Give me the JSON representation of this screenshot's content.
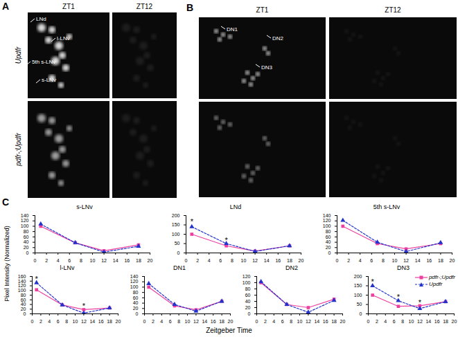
{
  "panels": {
    "A": {
      "label": "A",
      "columns": [
        "ZT1",
        "ZT12"
      ],
      "rows": [
        "Updfr",
        "pdfr-;Updfr"
      ],
      "cell_labels": [
        "LNd",
        "l-LNv",
        "5th s-LNv",
        "s-LNv"
      ]
    },
    "B": {
      "label": "B",
      "columns": [
        "ZT1",
        "ZT12"
      ],
      "cell_labels": [
        "DN1",
        "DN2",
        "DN3"
      ]
    },
    "C": {
      "label": "C",
      "ylabel": "Pixel Intensity (Normalized)",
      "xlabel": "Zeitgeber Time"
    }
  },
  "chart_data": [
    {
      "type": "line",
      "title": "s-LNv",
      "x": [
        1,
        7,
        12,
        18
      ],
      "xlim": [
        0,
        20
      ],
      "xticks": [
        0,
        2,
        4,
        6,
        8,
        10,
        12,
        14,
        16,
        18,
        20
      ],
      "ylim": [
        0,
        140
      ],
      "yticks": [
        0,
        20,
        40,
        60,
        80,
        100,
        120,
        140
      ],
      "series": [
        {
          "name": "pdfr-;Updfr",
          "color": "#ee3fa0",
          "marker": "square",
          "line_style": "solid",
          "values": [
            100,
            38,
            8,
            30
          ]
        },
        {
          "name": "Updfr",
          "color": "#2233cc",
          "marker": "triangle",
          "line_style": "dashed",
          "values": [
            108,
            38,
            3,
            25
          ]
        }
      ]
    },
    {
      "type": "line",
      "title": "LNd",
      "x": [
        1,
        7,
        12,
        18
      ],
      "xlim": [
        0,
        20
      ],
      "xticks": [
        0,
        2,
        4,
        6,
        8,
        10,
        12,
        14,
        16,
        18,
        20
      ],
      "ylim": [
        0,
        200
      ],
      "yticks": [
        0,
        50,
        100,
        150,
        200
      ],
      "series": [
        {
          "name": "pdfr-;Updfr",
          "color": "#ee3fa0",
          "marker": "square",
          "line_style": "solid",
          "values": [
            100,
            38,
            10,
            38
          ]
        },
        {
          "name": "Updfr",
          "color": "#2233cc",
          "marker": "triangle",
          "line_style": "dashed",
          "values": [
            140,
            50,
            8,
            38
          ]
        }
      ],
      "annotations": [
        {
          "x": 1,
          "y": 165,
          "text": "*"
        },
        {
          "x": 7,
          "y": 68,
          "text": "*"
        }
      ]
    },
    {
      "type": "line",
      "title": "5th s-LNv",
      "x": [
        1,
        7,
        12,
        18
      ],
      "xlim": [
        0,
        20
      ],
      "xticks": [
        0,
        2,
        4,
        6,
        8,
        10,
        12,
        14,
        16,
        18,
        20
      ],
      "ylim": [
        0,
        140
      ],
      "yticks": [
        0,
        20,
        40,
        60,
        80,
        100,
        120,
        140
      ],
      "series": [
        {
          "name": "pdfr-;Updfr",
          "color": "#ee3fa0",
          "marker": "square",
          "line_style": "solid",
          "values": [
            100,
            35,
            15,
            35
          ]
        },
        {
          "name": "Updfr",
          "color": "#2233cc",
          "marker": "triangle",
          "line_style": "dashed",
          "values": [
            122,
            40,
            5,
            38
          ]
        }
      ]
    },
    {
      "type": "line",
      "title": "l-LNv",
      "x": [
        1,
        7,
        12,
        18
      ],
      "xlim": [
        0,
        20
      ],
      "xticks": [
        0,
        2,
        4,
        6,
        8,
        10,
        12,
        14,
        16,
        18,
        20
      ],
      "ylim": [
        0,
        160
      ],
      "yticks": [
        0,
        20,
        40,
        60,
        80,
        100,
        120,
        140,
        160
      ],
      "series": [
        {
          "name": "pdfr-;Updfr",
          "color": "#ee3fa0",
          "marker": "square",
          "line_style": "solid",
          "values": [
            103,
            38,
            18,
            25
          ]
        },
        {
          "name": "Updfr",
          "color": "#2233cc",
          "marker": "triangle",
          "line_style": "dashed",
          "values": [
            133,
            38,
            3,
            25
          ]
        }
      ],
      "annotations": [
        {
          "x": 1,
          "y": 148,
          "text": "*"
        },
        {
          "x": 12,
          "y": 32,
          "text": "*"
        }
      ]
    },
    {
      "type": "line",
      "title": "DN1",
      "x": [
        1,
        7,
        12,
        18
      ],
      "xlim": [
        0,
        20
      ],
      "xticks": [
        0,
        2,
        4,
        6,
        8,
        10,
        12,
        14,
        16,
        18,
        20
      ],
      "ylim": [
        0,
        140
      ],
      "yticks": [
        0,
        20,
        40,
        60,
        80,
        100,
        120,
        140
      ],
      "series": [
        {
          "name": "pdfr-;Updfr",
          "color": "#ee3fa0",
          "marker": "square",
          "line_style": "solid",
          "values": [
            100,
            30,
            15,
            47
          ]
        },
        {
          "name": "Updfr",
          "color": "#2233cc",
          "marker": "triangle",
          "line_style": "dashed",
          "values": [
            113,
            35,
            10,
            47
          ]
        }
      ]
    },
    {
      "type": "line",
      "title": "DN2",
      "x": [
        1,
        7,
        12,
        18
      ],
      "xlim": [
        0,
        20
      ],
      "xticks": [
        0,
        2,
        4,
        6,
        8,
        10,
        12,
        14,
        16,
        18,
        20
      ],
      "ylim": [
        0,
        120
      ],
      "yticks": [
        0,
        20,
        40,
        60,
        80,
        100,
        120
      ],
      "series": [
        {
          "name": "pdfr-;Updfr",
          "color": "#ee3fa0",
          "marker": "square",
          "line_style": "solid",
          "values": [
            100,
            30,
            20,
            47
          ]
        },
        {
          "name": "Updfr",
          "color": "#2233cc",
          "marker": "triangle",
          "line_style": "dashed",
          "values": [
            103,
            30,
            5,
            43
          ]
        }
      ]
    },
    {
      "type": "line",
      "title": "DN3",
      "x": [
        1,
        7,
        12,
        18
      ],
      "xlim": [
        0,
        20
      ],
      "xticks": [
        0,
        2,
        4,
        6,
        8,
        10,
        12,
        14,
        16,
        18,
        20
      ],
      "ylim": [
        0,
        200
      ],
      "yticks": [
        0,
        50,
        100,
        150,
        200
      ],
      "legend": "upper right",
      "series": [
        {
          "name": "pdfr-;Updfr",
          "color": "#ee3fa0",
          "marker": "square",
          "line_style": "solid",
          "values": [
            100,
            40,
            43,
            65
          ]
        },
        {
          "name": "Updfr",
          "color": "#2233cc",
          "marker": "triangle",
          "line_style": "dashed",
          "values": [
            150,
            70,
            28,
            65
          ]
        }
      ],
      "annotations": [
        {
          "x": 1,
          "y": 170,
          "text": "*"
        },
        {
          "x": 7,
          "y": 88,
          "text": "*"
        },
        {
          "x": 12,
          "y": 60,
          "text": "*"
        }
      ]
    }
  ]
}
